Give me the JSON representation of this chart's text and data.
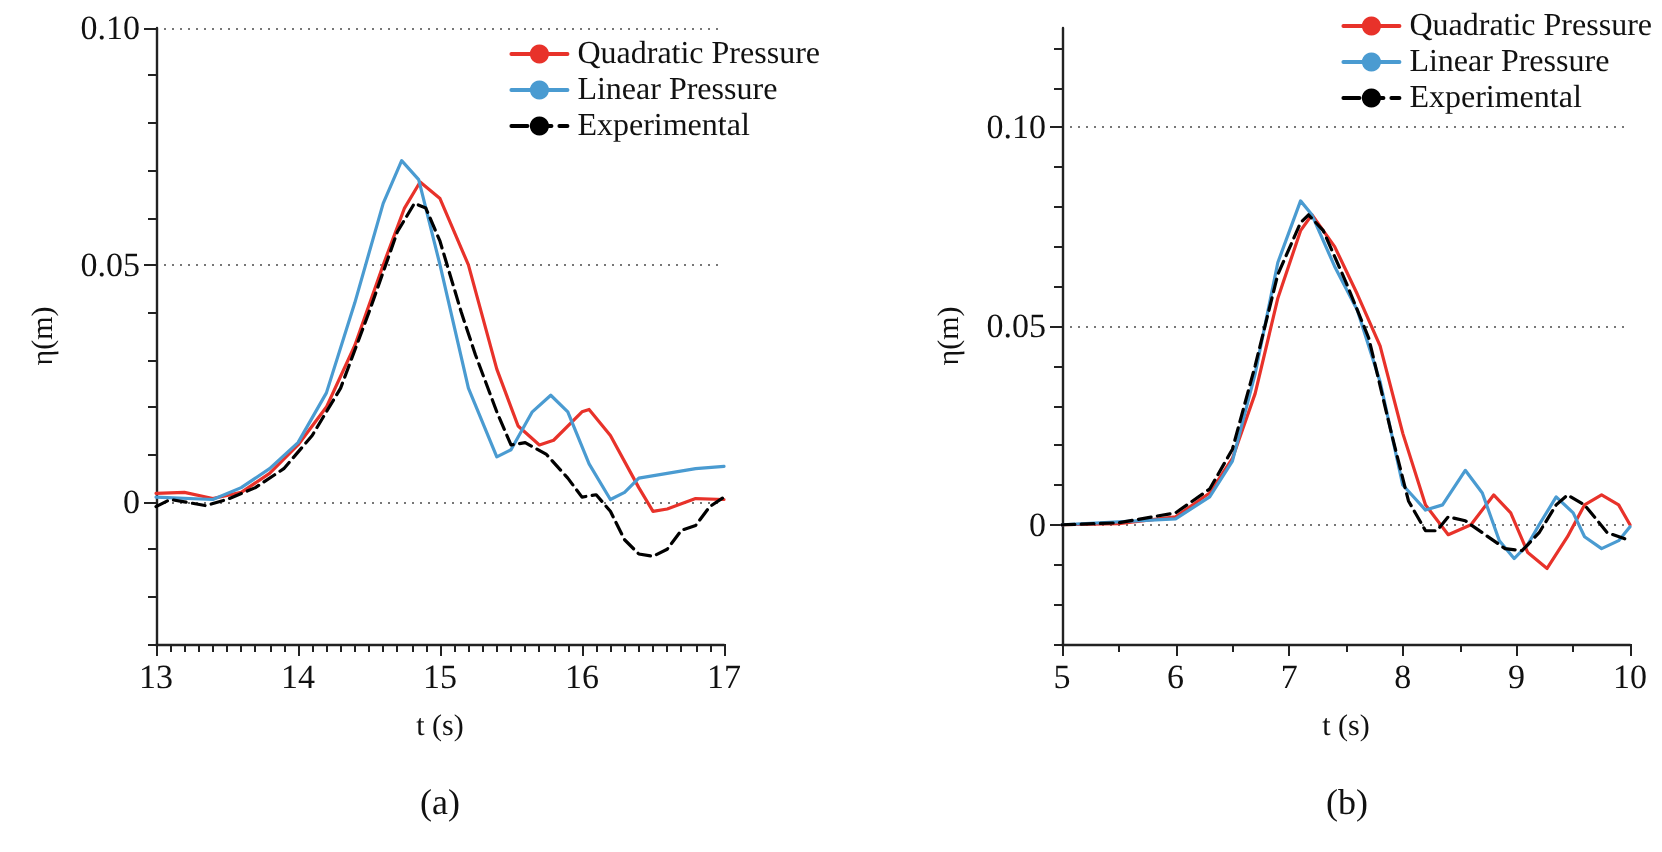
{
  "chart_data": [
    {
      "type": "line",
      "xlabel": "t (s)",
      "ylabel": "η(m)",
      "annotations": [
        "(a)"
      ],
      "xlim": [
        13,
        17
      ],
      "xticks": [
        13,
        {
          "value": 13.1,
          "label": null
        },
        {
          "value": 13.2,
          "label": null
        },
        {
          "value": 13.3,
          "label": null
        },
        {
          "value": 13.4,
          "label": null
        },
        {
          "value": 13.5,
          "label": null
        },
        {
          "value": 13.6,
          "label": null
        },
        {
          "value": 13.7,
          "label": null
        },
        {
          "value": 13.8,
          "label": null
        },
        {
          "value": 13.9,
          "label": null
        },
        14,
        {
          "value": 14.1,
          "label": null
        },
        {
          "value": 14.2,
          "label": null
        },
        {
          "value": 14.3,
          "label": null
        },
        {
          "value": 14.4,
          "label": null
        },
        {
          "value": 14.5,
          "label": null
        },
        {
          "value": 14.6,
          "label": null
        },
        {
          "value": 14.7,
          "label": null
        },
        {
          "value": 14.8,
          "label": null
        },
        {
          "value": 14.9,
          "label": null
        },
        15,
        {
          "value": 15.1,
          "label": null
        },
        {
          "value": 15.2,
          "label": null
        },
        {
          "value": 15.3,
          "label": null
        },
        {
          "value": 15.4,
          "label": null
        },
        {
          "value": 15.5,
          "label": null
        },
        {
          "value": 15.6,
          "label": null
        },
        {
          "value": 15.7,
          "label": null
        },
        {
          "value": 15.8,
          "label": null
        },
        {
          "value": 15.9,
          "label": null
        },
        16,
        {
          "value": 16.1,
          "label": null
        },
        {
          "value": 16.2,
          "label": null
        },
        {
          "value": 16.3,
          "label": null
        },
        {
          "value": 16.4,
          "label": null
        },
        {
          "value": 16.5,
          "label": null
        },
        {
          "value": 16.6,
          "label": null
        },
        {
          "value": 16.7,
          "label": null
        },
        {
          "value": 16.8,
          "label": null
        },
        {
          "value": 16.9,
          "label": null
        },
        17
      ],
      "ylim": [
        -0.03,
        0.1
      ],
      "yticks": [
        {
          "value": -0.03,
          "label": null
        },
        {
          "value": -0.02,
          "label": null
        },
        {
          "value": -0.01,
          "label": null
        },
        0,
        {
          "value": 0.01,
          "label": null
        },
        {
          "value": 0.02,
          "label": null
        },
        {
          "value": 0.03,
          "label": null
        },
        {
          "value": 0.04,
          "label": null
        },
        {
          "value": 0.05,
          "label": "0.05"
        },
        {
          "value": 0.06,
          "label": null
        },
        {
          "value": 0.07,
          "label": null
        },
        {
          "value": 0.08,
          "label": null
        },
        {
          "value": 0.09,
          "label": null
        },
        {
          "value": 0.1,
          "label": "0.10"
        }
      ],
      "grid": "y",
      "legend": "top right",
      "marker": "none",
      "series": [
        {
          "name": "Quadratic Pressure",
          "color": "#e8322a",
          "line_style": "solid",
          "x": [
            13,
            13.2,
            13.4,
            13.6,
            13.8,
            14,
            14.2,
            14.4,
            14.6,
            14.75,
            14.86,
            15,
            15.2,
            15.4,
            15.55,
            15.7,
            15.8,
            16,
            16.05,
            16.2,
            16.4,
            16.5,
            16.6,
            16.8,
            17
          ],
          "values": [
            0.0018,
            0.002,
            0.0007,
            0.002,
            0.006,
            0.012,
            0.02,
            0.033,
            0.05,
            0.062,
            0.0675,
            0.064,
            0.05,
            0.028,
            0.016,
            0.012,
            0.013,
            0.019,
            0.0195,
            0.014,
            0.003,
            -0.002,
            -0.0015,
            0.0007,
            0.0005
          ]
        },
        {
          "name": "Linear Pressure",
          "color": "#4a9bd1",
          "line_style": "solid",
          "x": [
            13,
            13.4,
            13.6,
            13.8,
            14,
            14.2,
            14.4,
            14.6,
            14.73,
            14.85,
            15,
            15.2,
            15.4,
            15.5,
            15.65,
            15.78,
            15.9,
            16.05,
            16.2,
            16.3,
            16.4,
            16.6,
            16.8,
            17
          ],
          "values": [
            0.001,
            0.0005,
            0.003,
            0.007,
            0.0125,
            0.023,
            0.042,
            0.063,
            0.072,
            0.068,
            0.05,
            0.024,
            0.0095,
            0.011,
            0.019,
            0.0225,
            0.019,
            0.008,
            0.0005,
            0.002,
            0.005,
            0.006,
            0.007,
            0.0075
          ]
        },
        {
          "name": "Experimental",
          "color": "#000000",
          "line_style": "dashed",
          "x": [
            13,
            13.1,
            13.2,
            13.35,
            13.5,
            13.7,
            13.9,
            14.1,
            14.3,
            14.5,
            14.7,
            14.82,
            14.9,
            15,
            15.15,
            15.25,
            15.4,
            15.5,
            15.6,
            15.75,
            15.9,
            16,
            16.1,
            16.2,
            16.3,
            16.4,
            16.5,
            16.6,
            16.7,
            16.8,
            16.9,
            17
          ],
          "values": [
            -0.001,
            0.0005,
            0,
            -0.0008,
            0.0005,
            0.003,
            0.007,
            0.014,
            0.024,
            0.04,
            0.057,
            0.063,
            0.062,
            0.055,
            0.04,
            0.031,
            0.019,
            0.012,
            0.0125,
            0.01,
            0.005,
            0.001,
            0.0015,
            -0.002,
            -0.008,
            -0.011,
            -0.0115,
            -0.01,
            -0.006,
            -0.005,
            -0.001,
            0.001
          ]
        }
      ]
    },
    {
      "type": "line",
      "xlabel": "t (s)",
      "ylabel": "η(m)",
      "annotations": [
        "(b)"
      ],
      "xlim": [
        5,
        10
      ],
      "xticks": [
        5,
        {
          "value": 5.5,
          "label": null
        },
        6,
        {
          "value": 6.5,
          "label": null
        },
        7,
        {
          "value": 7.5,
          "label": null
        },
        8,
        {
          "value": 8.5,
          "label": null
        },
        9,
        {
          "value": 9.5,
          "label": null
        },
        10
      ],
      "ylim": [
        -0.03,
        0.125
      ],
      "yticks": [
        {
          "value": -0.03,
          "label": null
        },
        {
          "value": -0.02,
          "label": null
        },
        {
          "value": -0.01,
          "label": null
        },
        0,
        {
          "value": 0.01,
          "label": null
        },
        {
          "value": 0.02,
          "label": null
        },
        {
          "value": 0.03,
          "label": null
        },
        {
          "value": 0.04,
          "label": null
        },
        {
          "value": 0.05,
          "label": "0.05"
        },
        {
          "value": 0.06,
          "label": null
        },
        {
          "value": 0.07,
          "label": null
        },
        {
          "value": 0.08,
          "label": null
        },
        {
          "value": 0.09,
          "label": null
        },
        {
          "value": 0.1,
          "label": "0.10"
        },
        {
          "value": 0.11,
          "label": null
        },
        {
          "value": 0.12,
          "label": null
        }
      ],
      "grid": "y",
      "legend": "top right",
      "marker": "none",
      "series": [
        {
          "name": "Quadratic Pressure",
          "color": "#e8322a",
          "line_style": "solid",
          "x": [
            5,
            5.5,
            6,
            6.3,
            6.5,
            6.7,
            6.9,
            7.1,
            7.2,
            7.4,
            7.6,
            7.8,
            8,
            8.2,
            8.4,
            8.6,
            8.8,
            8.95,
            9.1,
            9.27,
            9.45,
            9.6,
            9.75,
            9.9,
            10
          ],
          "values": [
            0,
            0.0003,
            0.002,
            0.008,
            0.0167,
            0.033,
            0.057,
            0.074,
            0.078,
            0.07,
            0.058,
            0.045,
            0.023,
            0.005,
            -0.0025,
            0,
            0.0075,
            0.003,
            -0.007,
            -0.011,
            -0.003,
            0.005,
            0.0075,
            0.005,
            0
          ]
        },
        {
          "name": "Linear Pressure",
          "color": "#4a9bd1",
          "line_style": "solid",
          "x": [
            5,
            6,
            6.3,
            6.5,
            6.7,
            6.9,
            7.1,
            7.2,
            7.4,
            7.6,
            7.8,
            8,
            8.2,
            8.35,
            8.55,
            8.7,
            8.85,
            8.98,
            9.1,
            9.2,
            9.35,
            9.5,
            9.6,
            9.75,
            9.9,
            10
          ],
          "values": [
            0,
            0.0015,
            0.007,
            0.016,
            0.038,
            0.066,
            0.0815,
            0.078,
            0.065,
            0.054,
            0.036,
            0.01,
            0.0037,
            0.005,
            0.0137,
            0.008,
            -0.004,
            -0.0085,
            -0.005,
            0,
            0.007,
            0.003,
            -0.003,
            -0.006,
            -0.004,
            -0.0005
          ]
        },
        {
          "name": "Experimental",
          "color": "#000000",
          "line_style": "dashed",
          "x": [
            5,
            5.5,
            6,
            6.3,
            6.5,
            6.7,
            6.9,
            7.1,
            7.17,
            7.3,
            7.5,
            7.7,
            7.9,
            8.05,
            8.2,
            8.3,
            8.4,
            8.55,
            8.7,
            8.9,
            9.05,
            9.2,
            9.35,
            9.45,
            9.6,
            9.8,
            10
          ],
          "values": [
            0,
            0.0005,
            0.003,
            0.009,
            0.019,
            0.04,
            0.063,
            0.076,
            0.078,
            0.074,
            0.061,
            0.047,
            0.023,
            0.006,
            -0.0015,
            -0.0015,
            0.002,
            0.001,
            -0.002,
            -0.006,
            -0.0065,
            -0.002,
            0.005,
            0.0075,
            0.005,
            -0.002,
            -0.004
          ]
        }
      ]
    }
  ]
}
